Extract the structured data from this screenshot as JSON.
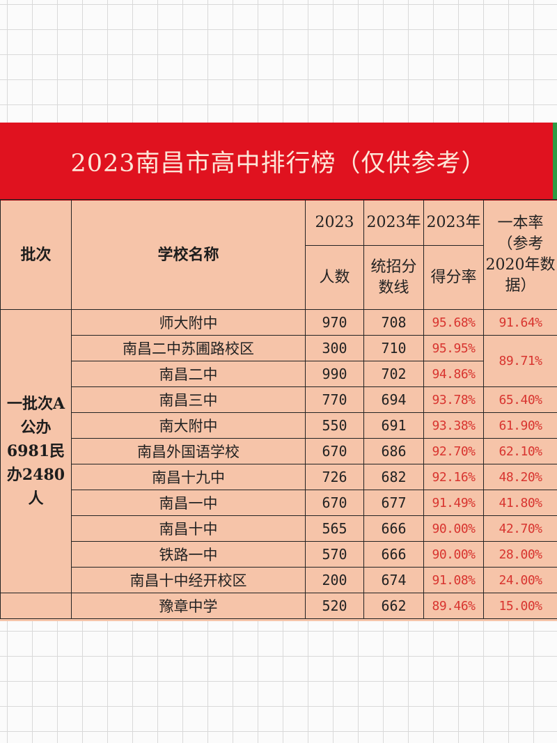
{
  "title": "2023南昌市高中排行榜（仅供参考）",
  "headers": {
    "batch": "批次",
    "school": "学校名称",
    "count_year": "2023",
    "count_label": "人数",
    "score_year": "2023年",
    "score_label": "统招分数线",
    "rate_year": "2023年",
    "rate_label": "得分率",
    "yiben": "一本率（参考2020年数据）"
  },
  "batch_label": "一批次A 公办6981民办2480人",
  "rows": [
    {
      "school": "师大附中",
      "count": "970",
      "score": "708",
      "rate": "95.68%",
      "yiben": "91.64%"
    },
    {
      "school": "南昌二中苏圃路校区",
      "count": "300",
      "score": "710",
      "rate": "95.95%",
      "yiben": "89.71%"
    },
    {
      "school": "南昌二中",
      "count": "990",
      "score": "702",
      "rate": "94.86%",
      "yiben": ""
    },
    {
      "school": "南昌三中",
      "count": "770",
      "score": "694",
      "rate": "93.78%",
      "yiben": "65.40%"
    },
    {
      "school": "南大附中",
      "count": "550",
      "score": "691",
      "rate": "93.38%",
      "yiben": "61.90%"
    },
    {
      "school": "南昌外国语学校",
      "count": "670",
      "score": "686",
      "rate": "92.70%",
      "yiben": "62.10%"
    },
    {
      "school": "南昌十九中",
      "count": "726",
      "score": "682",
      "rate": "92.16%",
      "yiben": "48.20%"
    },
    {
      "school": "南昌一中",
      "count": "670",
      "score": "677",
      "rate": "91.49%",
      "yiben": "41.80%"
    },
    {
      "school": "南昌十中",
      "count": "565",
      "score": "666",
      "rate": "90.00%",
      "yiben": "42.70%"
    },
    {
      "school": "铁路一中",
      "count": "570",
      "score": "666",
      "rate": "90.00%",
      "yiben": "28.00%"
    },
    {
      "school": "南昌十中经开校区",
      "count": "200",
      "score": "674",
      "rate": "91.08%",
      "yiben": "24.00%"
    },
    {
      "school": "豫章中学",
      "count": "520",
      "score": "662",
      "rate": "89.46%",
      "yiben": "15.00%"
    }
  ]
}
